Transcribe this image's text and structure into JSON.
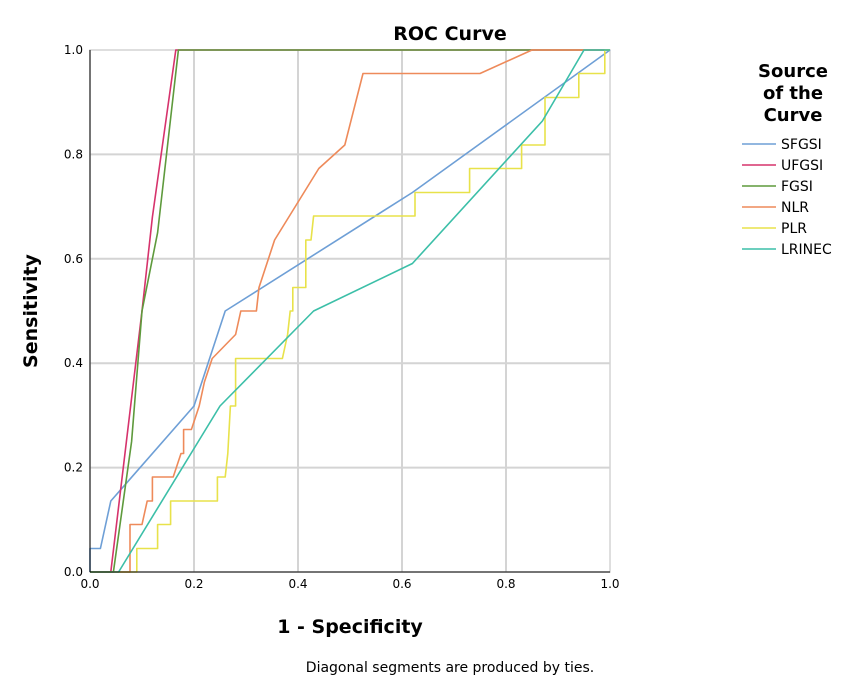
{
  "chart_data": {
    "type": "line",
    "title": "ROC Curve",
    "xlabel": "1 - Specificity",
    "ylabel": "Sensitivity",
    "xlim": [
      0,
      1
    ],
    "ylim": [
      0,
      1
    ],
    "xticks": [
      "0.0",
      "0.2",
      "0.4",
      "0.6",
      "0.8",
      "1.0"
    ],
    "yticks": [
      "0.0",
      "0.2",
      "0.4",
      "0.6",
      "0.8",
      "1.0"
    ],
    "grid": true,
    "legend_title": [
      "Source",
      "of the",
      "Curve"
    ],
    "legend_placement": "right",
    "footnote": "Diagonal segments are produced by ties.",
    "series": [
      {
        "name": "SFGSI",
        "color": "#6E9FD6",
        "points": [
          [
            0,
            0
          ],
          [
            0,
            0.045
          ],
          [
            0.02,
            0.045
          ],
          [
            0.04,
            0.136
          ],
          [
            0.2,
            0.318
          ],
          [
            0.26,
            0.5
          ],
          [
            0.62,
            0.727
          ],
          [
            1.0,
            1.0
          ]
        ]
      },
      {
        "name": "UFGSI",
        "color": "#D6336C",
        "points": [
          [
            0,
            0
          ],
          [
            0.04,
            0
          ],
          [
            0.07,
            0.25
          ],
          [
            0.1,
            0.5
          ],
          [
            0.12,
            0.68
          ],
          [
            0.165,
            1.0
          ],
          [
            1.0,
            1.0
          ]
        ]
      },
      {
        "name": "FGSI",
        "color": "#5E9A3C",
        "points": [
          [
            0,
            0
          ],
          [
            0.045,
            0
          ],
          [
            0.08,
            0.25
          ],
          [
            0.1,
            0.5
          ],
          [
            0.13,
            0.65
          ],
          [
            0.17,
            1.0
          ],
          [
            1.0,
            1.0
          ]
        ]
      },
      {
        "name": "NLR",
        "color": "#EE8A5A",
        "points": [
          [
            0,
            0
          ],
          [
            0.077,
            0
          ],
          [
            0.077,
            0.091
          ],
          [
            0.1,
            0.091
          ],
          [
            0.11,
            0.136
          ],
          [
            0.12,
            0.136
          ],
          [
            0.12,
            0.182
          ],
          [
            0.16,
            0.182
          ],
          [
            0.175,
            0.227
          ],
          [
            0.18,
            0.227
          ],
          [
            0.18,
            0.273
          ],
          [
            0.195,
            0.273
          ],
          [
            0.21,
            0.318
          ],
          [
            0.22,
            0.364
          ],
          [
            0.235,
            0.409
          ],
          [
            0.28,
            0.455
          ],
          [
            0.29,
            0.5
          ],
          [
            0.32,
            0.5
          ],
          [
            0.325,
            0.545
          ],
          [
            0.355,
            0.636
          ],
          [
            0.44,
            0.773
          ],
          [
            0.49,
            0.818
          ],
          [
            0.525,
            0.955
          ],
          [
            0.75,
            0.955
          ],
          [
            0.85,
            1.0
          ],
          [
            1.0,
            1.0
          ]
        ]
      },
      {
        "name": "PLR",
        "color": "#E8E24A",
        "points": [
          [
            0,
            0
          ],
          [
            0.09,
            0
          ],
          [
            0.09,
            0.045
          ],
          [
            0.13,
            0.045
          ],
          [
            0.13,
            0.091
          ],
          [
            0.155,
            0.091
          ],
          [
            0.155,
            0.136
          ],
          [
            0.245,
            0.136
          ],
          [
            0.245,
            0.182
          ],
          [
            0.26,
            0.182
          ],
          [
            0.265,
            0.227
          ],
          [
            0.27,
            0.318
          ],
          [
            0.28,
            0.318
          ],
          [
            0.28,
            0.409
          ],
          [
            0.37,
            0.409
          ],
          [
            0.38,
            0.455
          ],
          [
            0.385,
            0.5
          ],
          [
            0.39,
            0.5
          ],
          [
            0.39,
            0.545
          ],
          [
            0.415,
            0.545
          ],
          [
            0.415,
            0.636
          ],
          [
            0.425,
            0.636
          ],
          [
            0.43,
            0.682
          ],
          [
            0.625,
            0.682
          ],
          [
            0.625,
            0.727
          ],
          [
            0.73,
            0.727
          ],
          [
            0.73,
            0.773
          ],
          [
            0.83,
            0.773
          ],
          [
            0.83,
            0.818
          ],
          [
            0.875,
            0.818
          ],
          [
            0.875,
            0.909
          ],
          [
            0.94,
            0.909
          ],
          [
            0.94,
            0.955
          ],
          [
            0.99,
            0.955
          ],
          [
            0.99,
            1.0
          ],
          [
            1.0,
            1.0
          ]
        ]
      },
      {
        "name": "LRINEC",
        "color": "#3CBFA8",
        "points": [
          [
            0,
            0
          ],
          [
            0.055,
            0
          ],
          [
            0.25,
            0.318
          ],
          [
            0.43,
            0.5
          ],
          [
            0.62,
            0.591
          ],
          [
            0.87,
            0.864
          ],
          [
            0.95,
            1.0
          ],
          [
            1.0,
            1.0
          ]
        ]
      }
    ]
  }
}
